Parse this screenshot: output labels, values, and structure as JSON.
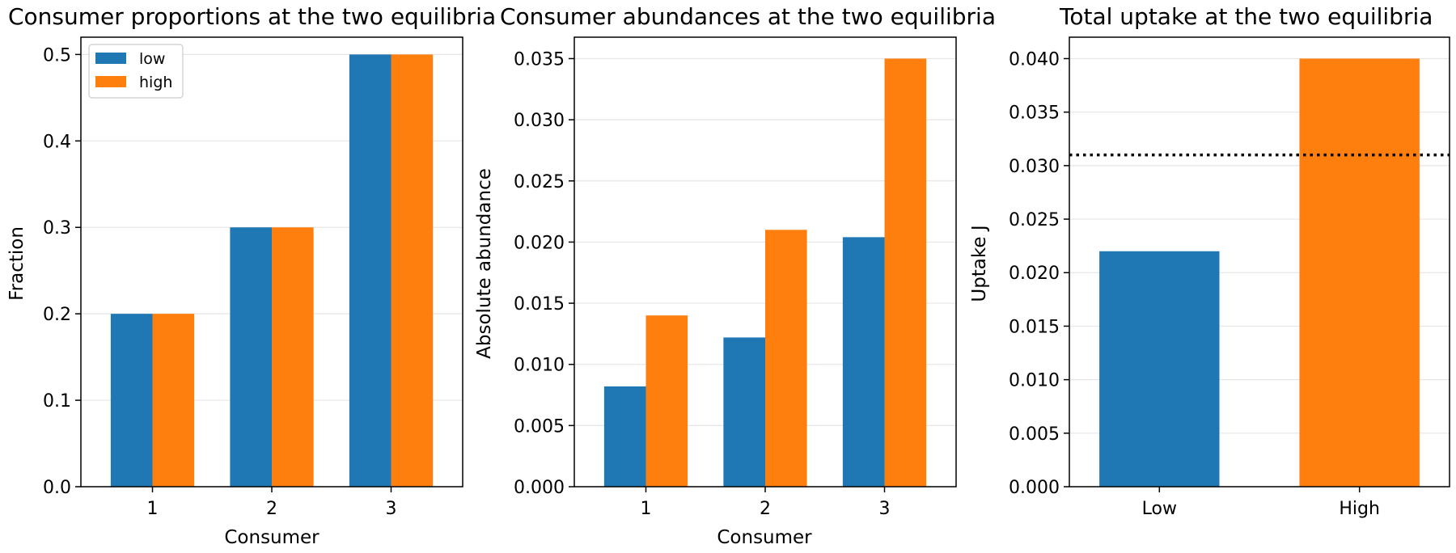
{
  "colors": {
    "low": "#1f77b4",
    "high": "#ff7f0e",
    "grid": "#e6e6e6",
    "reference_line": "#000000"
  },
  "chart_data": [
    {
      "type": "bar",
      "title": "Consumer proportions at the two equilibria",
      "xlabel": "Consumer",
      "ylabel": "Fraction",
      "categories": [
        "1",
        "2",
        "3"
      ],
      "series": [
        {
          "name": "low",
          "values": [
            0.2,
            0.3,
            0.5
          ]
        },
        {
          "name": "high",
          "values": [
            0.2,
            0.3,
            0.5
          ]
        }
      ],
      "ylim": [
        0,
        0.52
      ],
      "yticks": [
        "0.0",
        "0.1",
        "0.2",
        "0.3",
        "0.4",
        "0.5"
      ],
      "grid": "horizontal",
      "legend": {
        "placement": "top-left",
        "entries": [
          "low",
          "high"
        ]
      }
    },
    {
      "type": "bar",
      "title": "Consumer abundances at the two equilibria",
      "xlabel": "Consumer",
      "ylabel": "Absolute abundance",
      "categories": [
        "1",
        "2",
        "3"
      ],
      "series": [
        {
          "name": "low",
          "values": [
            0.0082,
            0.0122,
            0.0204
          ]
        },
        {
          "name": "high",
          "values": [
            0.014,
            0.021,
            0.035
          ]
        }
      ],
      "ylim": [
        0,
        0.03675
      ],
      "yticks": [
        "0.000",
        "0.005",
        "0.010",
        "0.015",
        "0.020",
        "0.025",
        "0.030",
        "0.035"
      ],
      "grid": "horizontal"
    },
    {
      "type": "bar",
      "title": "Total uptake at the two equilibria",
      "xlabel": "",
      "ylabel": "Uptake J",
      "categories": [
        "Low",
        "High"
      ],
      "values": [
        0.022,
        0.04
      ],
      "ylim": [
        0,
        0.042
      ],
      "yticks": [
        "0.000",
        "0.005",
        "0.010",
        "0.015",
        "0.020",
        "0.025",
        "0.030",
        "0.035",
        "0.040"
      ],
      "reference_line": {
        "y": 0.031,
        "style": "dotted"
      },
      "grid": "horizontal"
    }
  ]
}
